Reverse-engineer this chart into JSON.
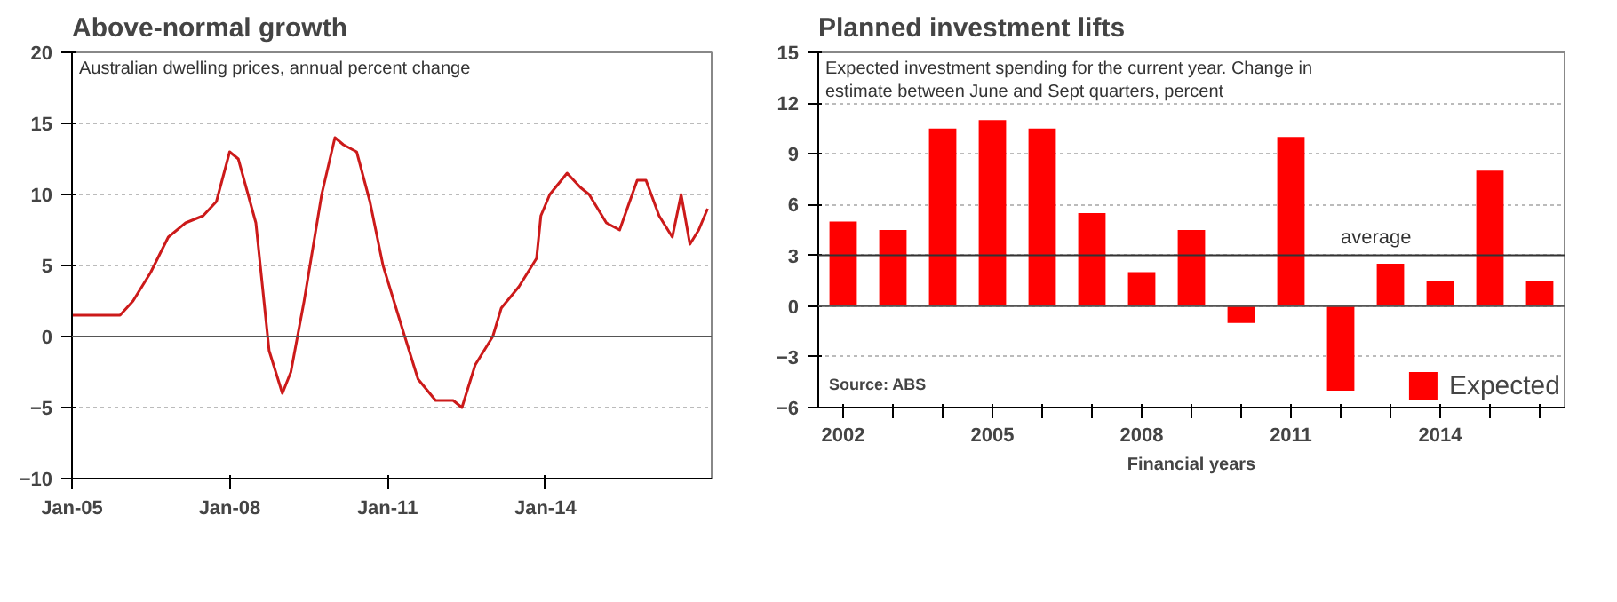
{
  "chart_data": [
    {
      "type": "line",
      "title": "Above-normal growth",
      "subtitle": "Australian dwelling prices, annual percent change",
      "x": [
        "2005-01",
        "2005-07",
        "2005-12",
        "2006-03",
        "2006-07",
        "2006-11",
        "2007-03",
        "2007-07",
        "2007-10",
        "2008-01",
        "2008-03",
        "2008-07",
        "2008-10",
        "2009-01",
        "2009-03",
        "2009-06",
        "2009-10",
        "2010-01",
        "2010-03",
        "2010-06",
        "2010-09",
        "2010-12",
        "2011-05",
        "2011-08",
        "2011-12",
        "2012-04",
        "2012-06",
        "2012-09",
        "2013-01",
        "2013-03",
        "2013-07",
        "2013-11",
        "2013-12",
        "2014-02",
        "2014-06",
        "2014-09",
        "2014-11",
        "2015-03",
        "2015-06",
        "2015-10",
        "2015-12",
        "2016-03",
        "2016-06",
        "2016-08",
        "2016-10",
        "2016-12",
        "2017-02"
      ],
      "series": [
        {
          "color": "#cc1a1a",
          "values": [
            1.5,
            1.5,
            1.5,
            2.5,
            4.5,
            7,
            8,
            8.5,
            9.5,
            13,
            12.5,
            8,
            -1,
            -4,
            -2.5,
            2.5,
            10,
            14,
            13.5,
            13,
            9.5,
            5,
            0,
            -3,
            -4.5,
            -4.5,
            -5,
            -2,
            0,
            2,
            3.5,
            5.5,
            8.5,
            10,
            11.5,
            10.5,
            10,
            8,
            7.5,
            11,
            11,
            8.5,
            7,
            10,
            6.5,
            7.5,
            9
          ]
        }
      ],
      "xlim": [
        "2005-01",
        "2017-03"
      ],
      "xticks": [
        {
          "value": "2005-01",
          "label": "Jan-05"
        },
        {
          "value": "2008-01",
          "label": "Jan-08"
        },
        {
          "value": "2011-01",
          "label": "Jan-11"
        },
        {
          "value": "2014-01",
          "label": "Jan-14"
        }
      ],
      "ylim": [
        -10,
        20
      ],
      "yticks": [
        -10,
        -5,
        0,
        5,
        10,
        15,
        20
      ],
      "ref_lines": [
        {
          "axis": "y",
          "value": 0,
          "color": "#555555"
        }
      ],
      "grid": "y",
      "line_style": "solid",
      "marker": "none"
    },
    {
      "type": "bar",
      "title": "Planned investment lifts",
      "subtitle": "Expected investment spending for the current year. Change in\nestimate between June and Sept quarters, percent",
      "xlabel": "Financial years",
      "categories": [
        "2002",
        null,
        null,
        "2005",
        null,
        null,
        "2008",
        null,
        null,
        "2011",
        null,
        null,
        "2014",
        null,
        null
      ],
      "series": [
        {
          "name": "Expected",
          "color": "#ff0000",
          "values": [
            5,
            4.5,
            10.5,
            11,
            10.5,
            5.5,
            2,
            4.5,
            -1,
            10,
            -5,
            2.5,
            1.5,
            8,
            1.5
          ]
        }
      ],
      "ylim": [
        -6,
        15
      ],
      "yticks": [
        -6,
        -3,
        0,
        3,
        6,
        9,
        12,
        15
      ],
      "ref_lines": [
        {
          "axis": "y",
          "value": 0,
          "color": "#555555"
        },
        {
          "axis": "y",
          "value": 3,
          "label": "average",
          "color": "#333333"
        }
      ],
      "annotations": [
        "Source: ABS"
      ],
      "grid": "y",
      "legend": "bottom right"
    }
  ]
}
